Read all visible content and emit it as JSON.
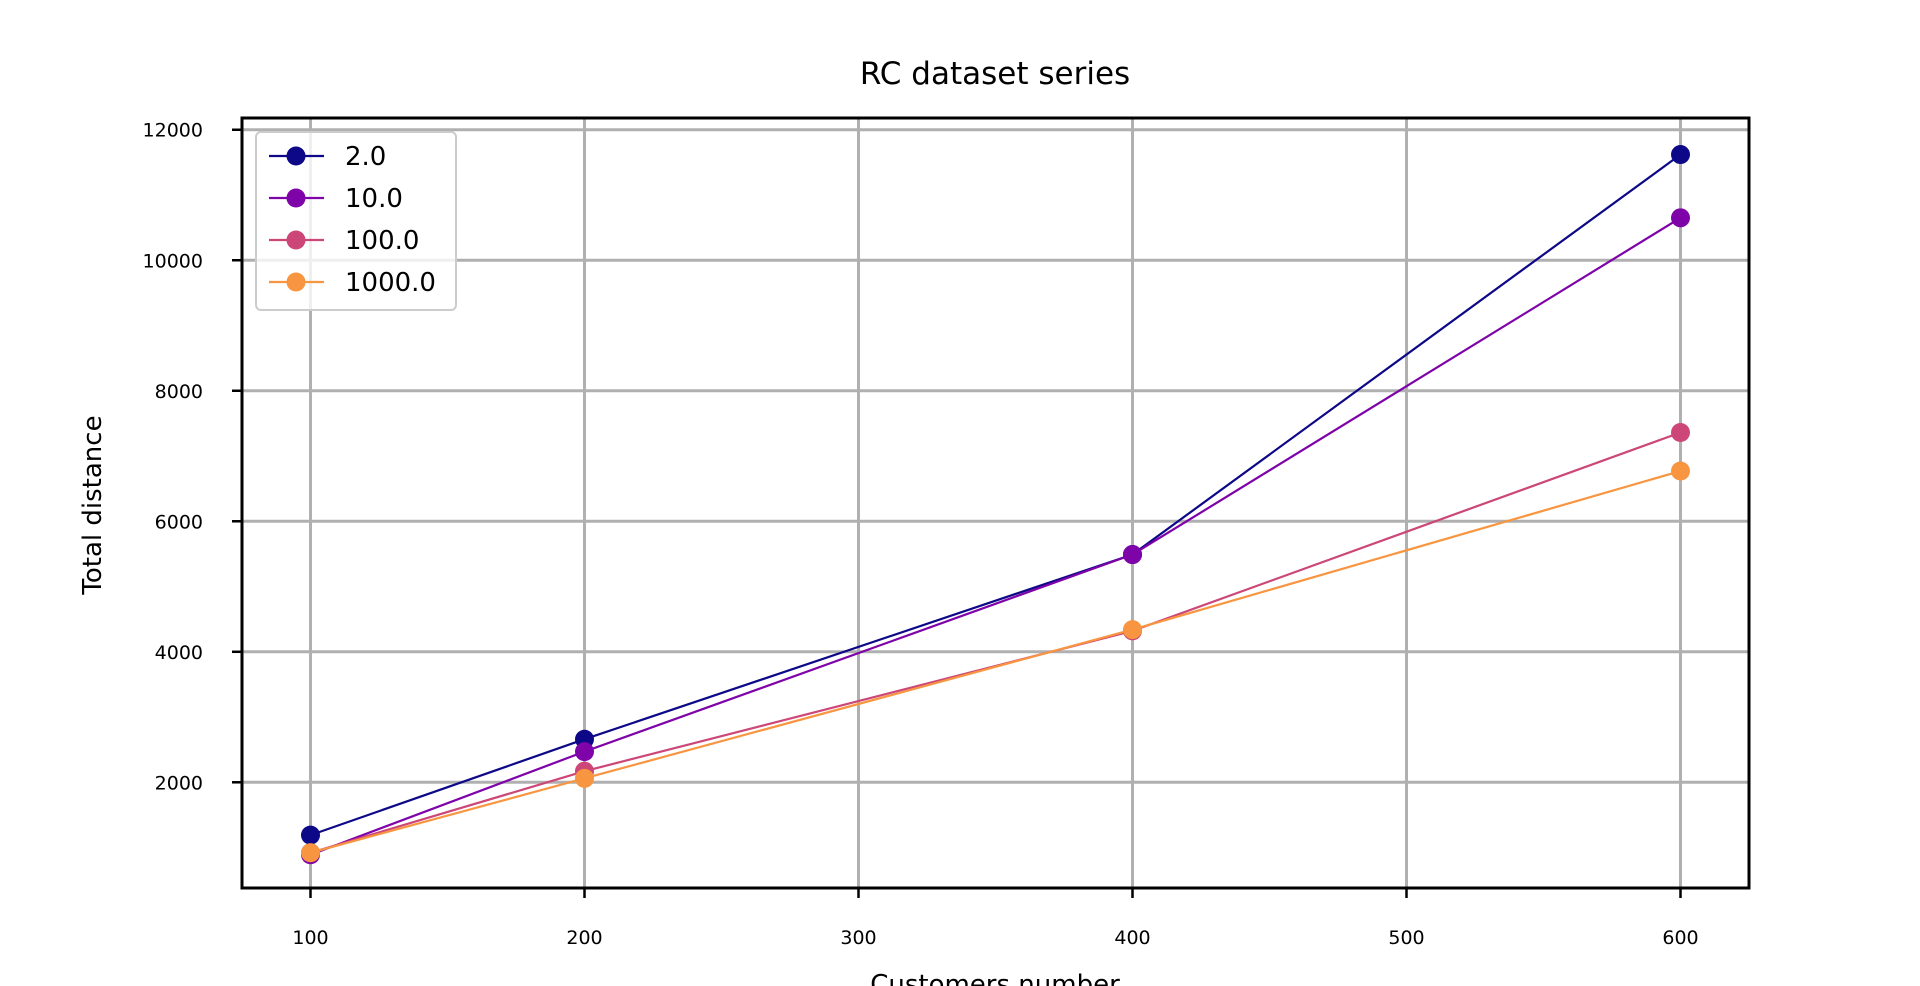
{
  "chart_data": {
    "type": "line",
    "title": "RC dataset series",
    "xlabel": "Customers number",
    "ylabel": "Total distance",
    "x": [
      100,
      200,
      400,
      600
    ],
    "xlim": [
      75,
      625
    ],
    "ylim": [
      380,
      12180
    ],
    "xticks": [
      "100",
      "200",
      "300",
      "400",
      "500",
      "600"
    ],
    "yticks": [
      "2000",
      "4000",
      "6000",
      "8000",
      "10000",
      "12000"
    ],
    "grid": true,
    "legend": "top-left",
    "series": [
      {
        "name": "2.0",
        "color": "#0d0887",
        "values": [
          1190,
          2660,
          5490,
          11620
        ]
      },
      {
        "name": "10.0",
        "color": "#7e03a8",
        "values": [
          890,
          2470,
          5490,
          10650
        ]
      },
      {
        "name": "100.0",
        "color": "#cc4778",
        "values": [
          920,
          2170,
          4320,
          7360
        ]
      },
      {
        "name": "1000.0",
        "color": "#f89540",
        "values": [
          920,
          2060,
          4340,
          6770
        ]
      }
    ]
  }
}
